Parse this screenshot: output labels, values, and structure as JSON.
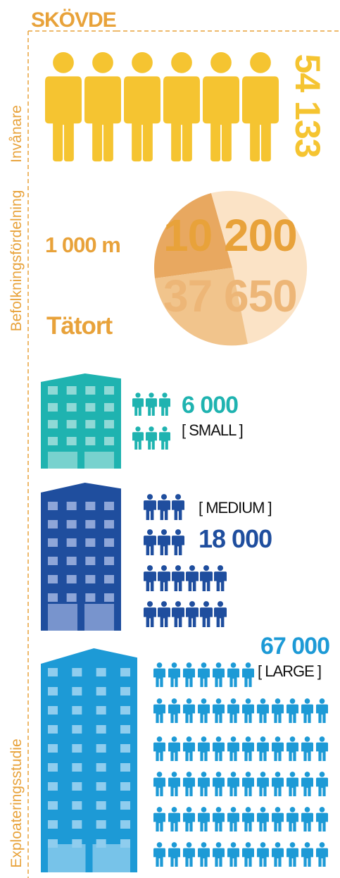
{
  "header": {
    "title": "SKÖVDE"
  },
  "population": {
    "label": "Invånare",
    "value": "54 133"
  },
  "distribution": {
    "label": "Befolkningsfördelning",
    "inner_label": "1 000 m",
    "inner_value": "10 200",
    "outer_value": "37 650",
    "outer_label": "Tätort"
  },
  "study": {
    "label": "Exploateringsstudie",
    "scenarios": [
      {
        "value": "6 000",
        "size": "[ SMALL ]"
      },
      {
        "value": "18 000",
        "size": "[ MEDIUM ]"
      },
      {
        "value": "67 000",
        "size": "[ LARGE ]"
      }
    ]
  }
}
